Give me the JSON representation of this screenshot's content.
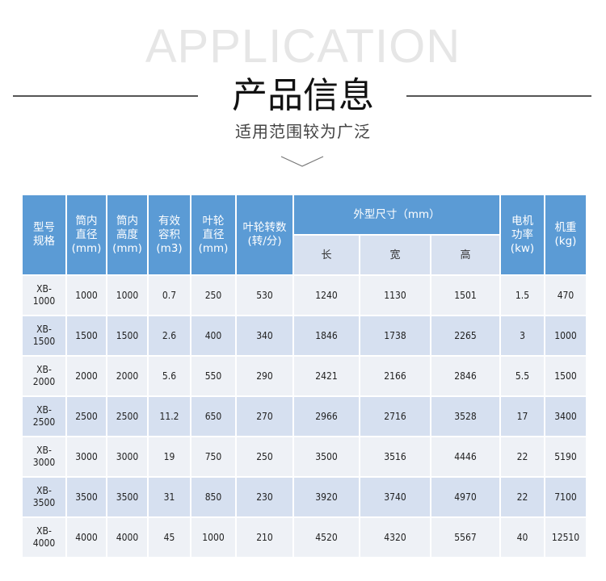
{
  "header": {
    "watermark": "APPLICATION",
    "title": "产品信息",
    "subtitle": "适用范围较为广泛",
    "icon": "chevron-down-icon"
  },
  "colors": {
    "header_bg": "#5b9bd5",
    "subheader_bg": "#d8e1f0",
    "row_light": "#eef1f6",
    "row_dark": "#d6e0f0"
  },
  "table": {
    "columns": [
      "型号\n规格",
      "筒内\n直径\n(mm)",
      "筒内\n高度\n(mm)",
      "有效\n容积\n(m3)",
      "叶轮\n直径\n(mm)",
      "叶轮转数\n(转/分)",
      "外型尺寸（mm）",
      "电机\n功率\n(kw)",
      "机重\n(kg)"
    ],
    "sub_columns": [
      "长",
      "宽",
      "高"
    ],
    "rows": [
      [
        "XB-\n1000",
        "1000",
        "1000",
        "0.7",
        "250",
        "530",
        "1240",
        "1130",
        "1501",
        "1.5",
        "470"
      ],
      [
        "XB-\n1500",
        "1500",
        "1500",
        "2.6",
        "400",
        "340",
        "1846",
        "1738",
        "2265",
        "3",
        "1000"
      ],
      [
        "XB-\n2000",
        "2000",
        "2000",
        "5.6",
        "550",
        "290",
        "2421",
        "2166",
        "2846",
        "5.5",
        "1500"
      ],
      [
        "XB-\n2500",
        "2500",
        "2500",
        "11.2",
        "650",
        "270",
        "2966",
        "2716",
        "3528",
        "17",
        "3400"
      ],
      [
        "XB-\n3000",
        "3000",
        "3000",
        "19",
        "750",
        "250",
        "3500",
        "3516",
        "4446",
        "22",
        "5190"
      ],
      [
        "XB-\n3500",
        "3500",
        "3500",
        "31",
        "850",
        "230",
        "3920",
        "3740",
        "4970",
        "22",
        "7100"
      ],
      [
        "XB-\n4000",
        "4000",
        "4000",
        "45",
        "1000",
        "210",
        "4520",
        "4320",
        "5567",
        "40",
        "12510"
      ]
    ]
  }
}
